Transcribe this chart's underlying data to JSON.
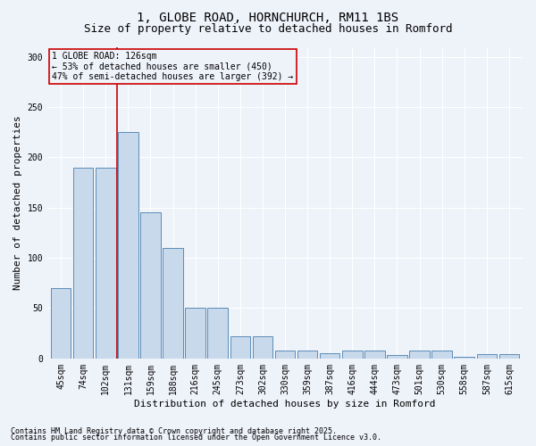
{
  "title1": "1, GLOBE ROAD, HORNCHURCH, RM11 1BS",
  "title2": "Size of property relative to detached houses in Romford",
  "xlabel": "Distribution of detached houses by size in Romford",
  "ylabel": "Number of detached properties",
  "categories": [
    "45sqm",
    "74sqm",
    "102sqm",
    "131sqm",
    "159sqm",
    "188sqm",
    "216sqm",
    "245sqm",
    "273sqm",
    "302sqm",
    "330sqm",
    "359sqm",
    "387sqm",
    "416sqm",
    "444sqm",
    "473sqm",
    "501sqm",
    "530sqm",
    "558sqm",
    "587sqm",
    "615sqm"
  ],
  "values": [
    70,
    190,
    190,
    225,
    145,
    110,
    50,
    50,
    22,
    22,
    8,
    8,
    5,
    8,
    8,
    3,
    8,
    8,
    2,
    4,
    4
  ],
  "bar_color": "#c9d9ec",
  "bar_edge_color": "#5b8db8",
  "vline_color": "#cc0000",
  "vline_x_index": 3,
  "annotation_text": "1 GLOBE ROAD: 126sqm\n← 53% of detached houses are smaller (450)\n47% of semi-detached houses are larger (392) →",
  "annotation_box_edgecolor": "#cc0000",
  "footer1": "Contains HM Land Registry data © Crown copyright and database right 2025.",
  "footer2": "Contains public sector information licensed under the Open Government Licence v3.0.",
  "background_color": "#eef2f9",
  "ylim": [
    0,
    310
  ],
  "yticks": [
    0,
    50,
    100,
    150,
    200,
    250,
    300
  ],
  "grid_color": "#ffffff",
  "title_fontsize": 10,
  "subtitle_fontsize": 9,
  "tick_fontsize": 7,
  "ylabel_fontsize": 8,
  "xlabel_fontsize": 8,
  "annotation_fontsize": 7,
  "footer_fontsize": 6
}
